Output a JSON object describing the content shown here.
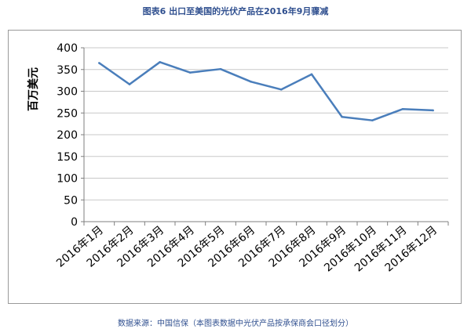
{
  "title": "图表6  出口至美国的光伏产品在2016年9月骤减",
  "source": "数据来源：中国信保（本图表数据中光伏产品按承保商会口径划分）",
  "colors": {
    "line": "#4a7ebb",
    "grid": "#c8c8c8",
    "axis": "#7f7f7f",
    "title": "#2f4f8f"
  },
  "chart_data": {
    "type": "line",
    "title": "图表6  出口至美国的光伏产品在2016年9月骤减",
    "xlabel": "",
    "ylabel": "百万美元",
    "ylim": [
      0,
      400
    ],
    "yticks": [
      0,
      50,
      100,
      150,
      200,
      250,
      300,
      350,
      400
    ],
    "grid": true,
    "categories": [
      "2016年1月",
      "2016年2月",
      "2016年3月",
      "2016年4月",
      "2016年5月",
      "2016年6月",
      "2016年7月",
      "2016年8月",
      "2016年9月",
      "2016年10月",
      "2016年11月",
      "2016年12月"
    ],
    "values": [
      365,
      316,
      367,
      343,
      351,
      322,
      304,
      339,
      241,
      233,
      259,
      256
    ]
  }
}
